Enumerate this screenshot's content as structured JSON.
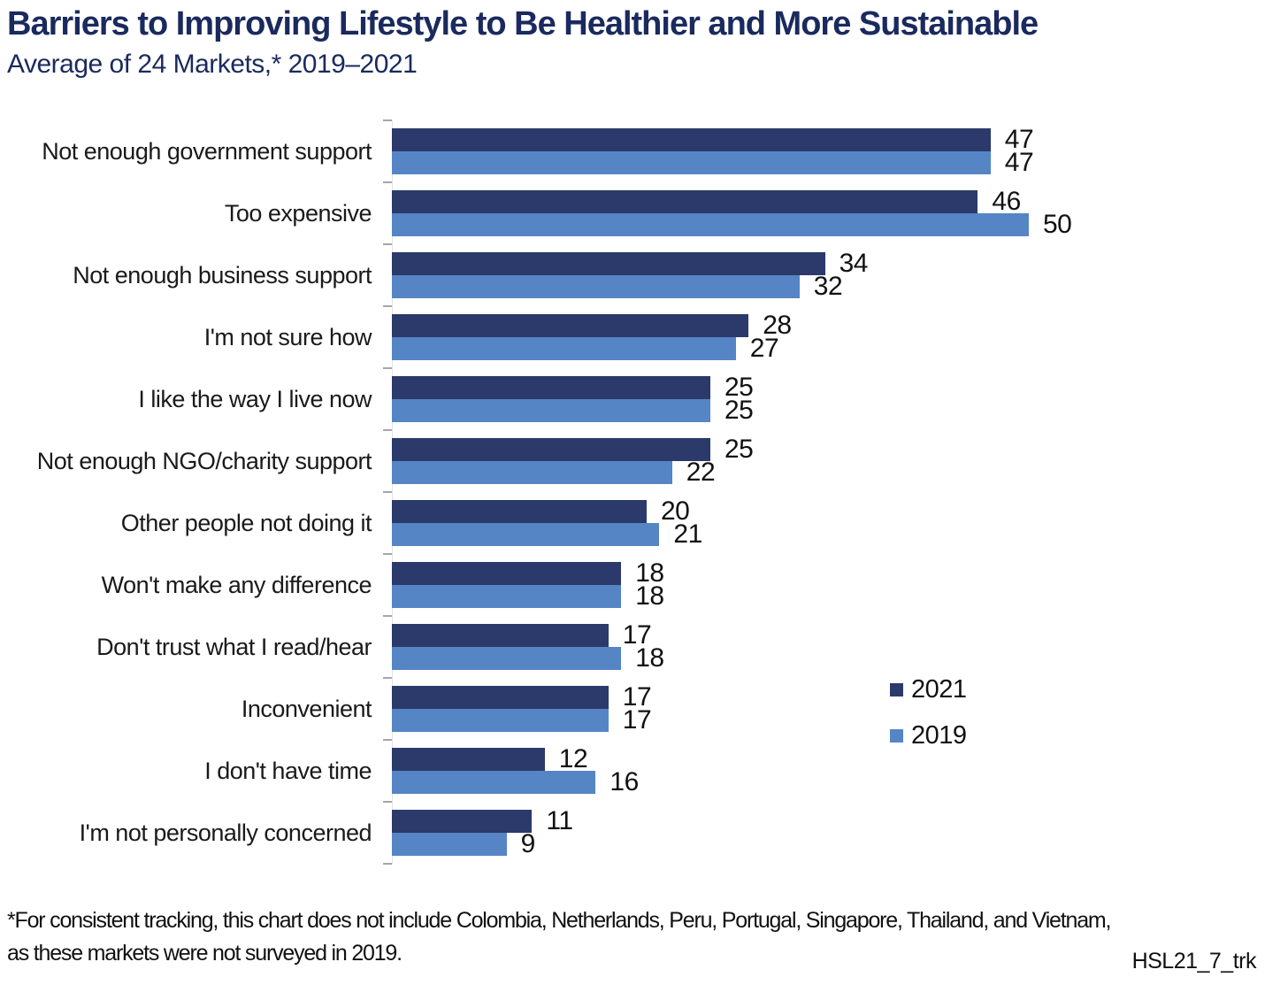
{
  "header": {
    "title": "Barriers to Improving Lifestyle to Be Healthier and More Sustainable",
    "subtitle": "Average of 24 Markets,* 2019–2021"
  },
  "chart_data": {
    "type": "bar",
    "orientation": "horizontal",
    "title": "Barriers to Improving Lifestyle to Be Healthier and More Sustainable",
    "subtitle": "Average of 24 Markets,* 2019–2021",
    "categories": [
      "Not enough government support",
      "Too expensive",
      "Not enough business support",
      "I'm not sure how",
      "I like the way I live now",
      "Not enough NGO/charity support",
      "Other people not doing it",
      "Won't make any difference",
      "Don't trust what I read/hear",
      "Inconvenient",
      "I don't have time",
      "I'm not personally concerned"
    ],
    "series": [
      {
        "name": "2021",
        "color": "#2B3A6B",
        "values": [
          47,
          46,
          34,
          28,
          25,
          25,
          20,
          18,
          17,
          17,
          12,
          11
        ]
      },
      {
        "name": "2019",
        "color": "#5585C4",
        "values": [
          47,
          50,
          32,
          27,
          25,
          22,
          21,
          18,
          18,
          17,
          16,
          9
        ]
      }
    ],
    "xlim": [
      0,
      58
    ],
    "value_labels": true,
    "grid": false,
    "legend_position": "middle-right"
  },
  "legend": {
    "items": [
      {
        "label": "2021",
        "color": "#2B3A6B"
      },
      {
        "label": "2019",
        "color": "#5585C4"
      }
    ]
  },
  "footnote": {
    "line1": "*For consistent tracking, this chart does not include Colombia, Netherlands, Peru, Portugal, Singapore, Thailand, and Vietnam,",
    "line2": "as these markets were not surveyed in 2019."
  },
  "footer": {
    "code": "HSL21_7_trk"
  },
  "colors": {
    "title_navy": "#1A2A5E",
    "bar_2021": "#2B3A6B",
    "bar_2019": "#5585C4",
    "axis_line": "#E3E3E3",
    "tick": "#A6A6A6",
    "text": "#111111"
  }
}
